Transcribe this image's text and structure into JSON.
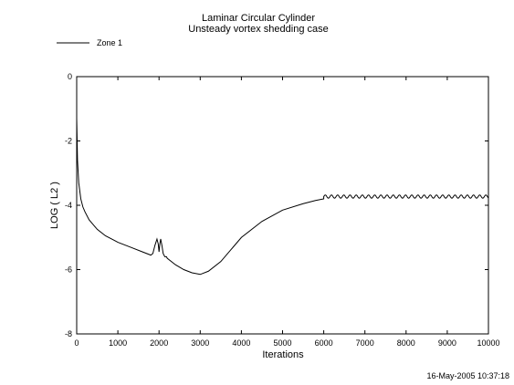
{
  "chart_data": {
    "type": "line",
    "title": "Laminar Circular Cylinder",
    "subtitle": "Unsteady vortex shedding case",
    "xlabel": "Iterations",
    "ylabel": "LOG ( L2 )",
    "xlim": [
      0,
      10000
    ],
    "ylim": [
      -8,
      0
    ],
    "x_ticks": [
      "0",
      "1000",
      "2000",
      "3000",
      "4000",
      "5000",
      "6000",
      "7000",
      "8000",
      "9000",
      "10000"
    ],
    "y_ticks": [
      "0",
      "-2",
      "-4",
      "-6",
      "-8"
    ],
    "grid": false,
    "legend_position": "top-left",
    "series": [
      {
        "name": "Zone   1",
        "color": "#000000",
        "x": [
          0,
          20,
          50,
          100,
          150,
          200,
          300,
          400,
          500,
          700,
          1000,
          1300,
          1600,
          1800,
          1850,
          1900,
          1950,
          1980,
          2000,
          2020,
          2040,
          2070,
          2100,
          2140,
          2180,
          2200,
          2400,
          2600,
          2800,
          3000,
          3200,
          3500,
          4000,
          4500,
          5000,
          5500,
          5800,
          6000
        ],
        "y": [
          -1.3,
          -2.6,
          -3.3,
          -3.8,
          -4.05,
          -4.2,
          -4.45,
          -4.6,
          -4.75,
          -4.95,
          -5.15,
          -5.3,
          -5.45,
          -5.55,
          -5.5,
          -5.25,
          -5.05,
          -5.2,
          -5.45,
          -5.2,
          -5.05,
          -5.25,
          -5.5,
          -5.6,
          -5.6,
          -5.65,
          -5.85,
          -6.0,
          -6.1,
          -6.15,
          -6.05,
          -5.75,
          -5.0,
          -4.5,
          -4.15,
          -3.95,
          -3.85,
          -3.8
        ],
        "oscillation": {
          "x_start": 6000,
          "x_end": 10000,
          "mean": -3.73,
          "amplitude": 0.05,
          "period": 150
        }
      }
    ],
    "annotations": [
      "16-May-2005 10:37:18"
    ]
  }
}
